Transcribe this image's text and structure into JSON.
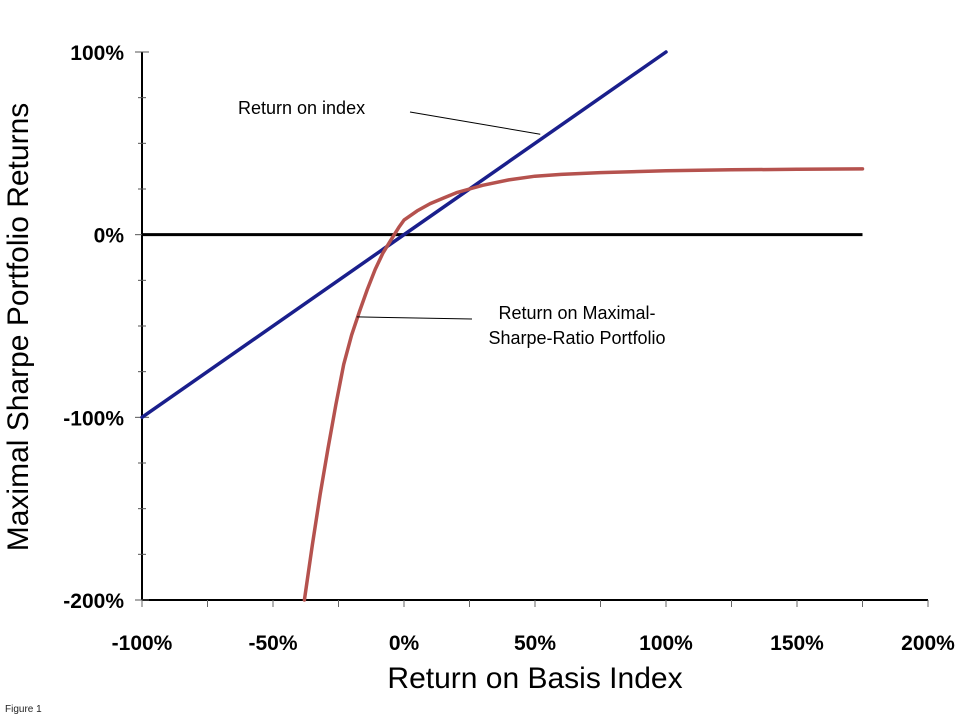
{
  "chart_data": {
    "type": "line",
    "xlabel": "Return on Basis Index",
    "ylabel": "Maximal Sharpe Portfolio Returns",
    "xlim": [
      -100,
      200
    ],
    "ylim": [
      -200,
      100
    ],
    "x_ticks": [
      "-100%",
      "-50%",
      "0%",
      "50%",
      "100%",
      "150%",
      "200%"
    ],
    "x_tick_values": [
      -100,
      -50,
      0,
      50,
      100,
      150,
      200
    ],
    "y_ticks": [
      "100%",
      "0%",
      "-100%",
      "-200%"
    ],
    "y_tick_values": [
      100,
      0,
      -100,
      -200
    ],
    "series": [
      {
        "name": "Return on index",
        "color": "#1a1f8c",
        "x": [
          -100,
          100
        ],
        "y": [
          -100,
          100
        ]
      },
      {
        "name": "Return on Maximal-Sharpe-Ratio Portfolio",
        "color": "#b5524e",
        "x": [
          -38,
          -35,
          -32,
          -29,
          -26,
          -23,
          -20,
          -17,
          -14,
          -11,
          -8,
          -5,
          -2,
          0,
          5,
          10,
          15,
          20,
          25,
          30,
          40,
          50,
          60,
          75,
          100,
          125,
          150,
          175
        ],
        "y": [
          -200,
          -170,
          -142,
          -117,
          -93,
          -71,
          -55,
          -42,
          -30,
          -19,
          -10,
          -3,
          4,
          8,
          13,
          17,
          20,
          23,
          25,
          27,
          30,
          32,
          33,
          34,
          35,
          35.5,
          35.8,
          36
        ]
      }
    ],
    "baseline": 0,
    "annotations": [
      {
        "lines": [
          "Return on index"
        ],
        "target_series": 0
      },
      {
        "lines": [
          "Return on Maximal-",
          "Sharpe-Ratio Portfolio"
        ],
        "target_series": 1
      }
    ],
    "grid": false,
    "legend": "none"
  },
  "caption": "Figure 1"
}
